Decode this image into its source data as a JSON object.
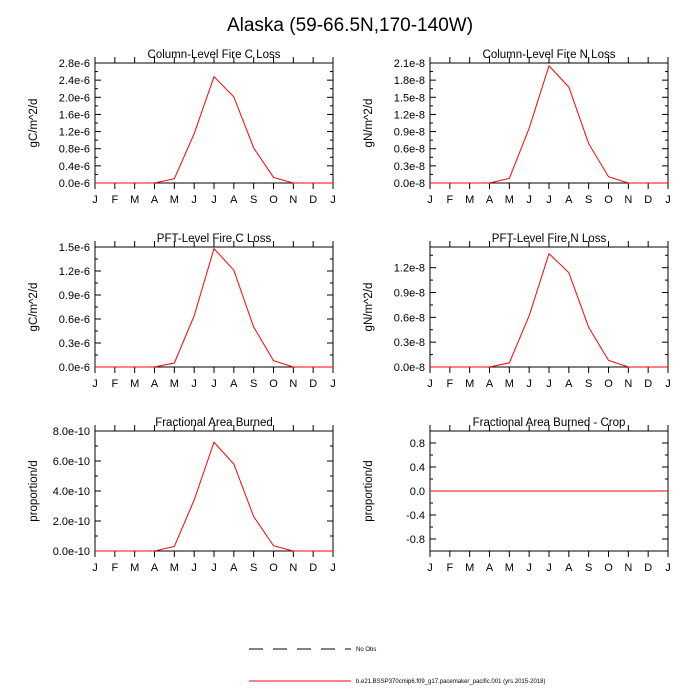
{
  "figure": {
    "title": "Alaska (59-66.5N,170-140W)"
  },
  "legend": {
    "items": [
      {
        "label": "No Obs",
        "style": "dashed",
        "color": "#000000"
      },
      {
        "label": "b.e21.BSSP370cmip6.f09_g17.pacemaker_pacific.001 (yrs 2015-2018)",
        "style": "solid",
        "color": "#ff0000"
      }
    ]
  },
  "chart_data": [
    {
      "type": "line",
      "title": "Column-Level Fire C Loss",
      "ylabel": "gC/m^2/d",
      "categories": [
        "J",
        "F",
        "M",
        "A",
        "M",
        "J",
        "J",
        "A",
        "S",
        "O",
        "N",
        "D",
        "J"
      ],
      "ylim": [
        0,
        2.8e-06
      ],
      "yticks": [
        0,
        4e-07,
        8e-07,
        1.2e-06,
        1.6e-06,
        2e-06,
        2.4e-06,
        2.8e-06
      ],
      "ytick_labels": [
        "0.0e-6",
        "0.4e-6",
        "0.8e-6",
        "1.2e-6",
        "1.6e-6",
        "2.0e-6",
        "2.4e-6",
        "2.8e-6"
      ],
      "series": [
        {
          "name": "b.e21.BSSP370cmip6.f09_g17.pacemaker_pacific.001 (yrs 2015-2018)",
          "color": "#ff0000",
          "values": [
            0,
            0,
            0,
            0,
            1e-07,
            1.15e-06,
            2.48e-06,
            2.01e-06,
            8.2e-07,
            1.3e-07,
            0,
            0,
            0
          ]
        }
      ]
    },
    {
      "type": "line",
      "title": "Column-Level Fire N Loss",
      "ylabel": "gN/m^2/d",
      "categories": [
        "J",
        "F",
        "M",
        "A",
        "M",
        "J",
        "J",
        "A",
        "S",
        "O",
        "N",
        "D",
        "J"
      ],
      "ylim": [
        0,
        2.1e-08
      ],
      "yticks": [
        0,
        3e-09,
        6e-09,
        9e-09,
        1.2e-08,
        1.5e-08,
        1.8e-08,
        2.1e-08
      ],
      "ytick_labels": [
        "0.0e-8",
        "0.3e-8",
        "0.6e-8",
        "0.9e-8",
        "1.2e-8",
        "1.5e-8",
        "1.8e-8",
        "2.1e-8"
      ],
      "series": [
        {
          "name": "b.e21.BSSP370cmip6.f09_g17.pacemaker_pacific.001 (yrs 2015-2018)",
          "color": "#ff0000",
          "values": [
            0,
            0,
            0,
            0,
            8e-10,
            9.6e-09,
            2.05e-08,
            1.68e-08,
            6.9e-09,
            1.1e-09,
            0,
            0,
            0
          ]
        }
      ]
    },
    {
      "type": "line",
      "title": "PFT-Level Fire C Loss",
      "ylabel": "gC/m^2/d",
      "categories": [
        "J",
        "F",
        "M",
        "A",
        "M",
        "J",
        "J",
        "A",
        "S",
        "O",
        "N",
        "D",
        "J"
      ],
      "ylim": [
        0,
        1.5e-06
      ],
      "yticks": [
        0,
        3e-07,
        6e-07,
        9e-07,
        1.2e-06,
        1.5e-06
      ],
      "ytick_labels": [
        "0.0e-6",
        "0.3e-6",
        "0.6e-6",
        "0.9e-6",
        "1.2e-6",
        "1.5e-6"
      ],
      "series": [
        {
          "name": "b.e21.BSSP370cmip6.f09_g17.pacemaker_pacific.001 (yrs 2015-2018)",
          "color": "#ff0000",
          "values": [
            0,
            0,
            0,
            0,
            5e-08,
            6.4e-07,
            1.48e-06,
            1.21e-06,
            5e-07,
            8e-08,
            0,
            0,
            0
          ]
        }
      ]
    },
    {
      "type": "line",
      "title": "PFT-Level Fire N Loss",
      "ylabel": "gN/m^2/d",
      "categories": [
        "J",
        "F",
        "M",
        "A",
        "M",
        "J",
        "J",
        "A",
        "S",
        "O",
        "N",
        "D",
        "J"
      ],
      "ylim": [
        0,
        1.45e-08
      ],
      "yticks": [
        0,
        3e-09,
        6e-09,
        9e-09,
        1.2e-08
      ],
      "ytick_labels": [
        "0.0e-8",
        "0.3e-8",
        "0.6e-8",
        "0.9e-8",
        "1.2e-8"
      ],
      "series": [
        {
          "name": "b.e21.BSSP370cmip6.f09_g17.pacemaker_pacific.001 (yrs 2015-2018)",
          "color": "#ff0000",
          "values": [
            0,
            0,
            0,
            0,
            5e-10,
            6.2e-09,
            1.37e-08,
            1.14e-08,
            4.8e-09,
            8e-10,
            0,
            0,
            0
          ]
        }
      ]
    },
    {
      "type": "line",
      "title": "Fractional Area Burned",
      "ylabel": "proportion/d",
      "categories": [
        "J",
        "F",
        "M",
        "A",
        "M",
        "J",
        "J",
        "A",
        "S",
        "O",
        "N",
        "D",
        "J"
      ],
      "ylim": [
        0,
        8e-10
      ],
      "yticks": [
        0,
        2e-10,
        4e-10,
        6e-10,
        8e-10
      ],
      "ytick_labels": [
        "0.0e-10",
        "2.0e-10",
        "4.0e-10",
        "6.0e-10",
        "8.0e-10"
      ],
      "series": [
        {
          "name": "b.e21.BSSP370cmip6.f09_g17.pacemaker_pacific.001 (yrs 2015-2018)",
          "color": "#ff0000",
          "values": [
            0,
            0,
            0,
            0,
            3e-11,
            3.4e-10,
            7.25e-10,
            5.8e-10,
            2.3e-10,
            3.5e-11,
            0,
            0,
            0
          ]
        }
      ]
    },
    {
      "type": "line",
      "title": "Fractional Area Burned - Crop",
      "ylabel": "proportion/d",
      "categories": [
        "J",
        "F",
        "M",
        "A",
        "M",
        "J",
        "J",
        "A",
        "S",
        "O",
        "N",
        "D",
        "J"
      ],
      "ylim": [
        -1,
        1
      ],
      "yticks": [
        -0.8,
        -0.4,
        0,
        0.4,
        0.8
      ],
      "ytick_labels": [
        "-0.8",
        "-0.4",
        "0.0",
        "0.4",
        "0.8"
      ],
      "series": [
        {
          "name": "b.e21.BSSP370cmip6.f09_g17.pacemaker_pacific.001 (yrs 2015-2018)",
          "color": "#ff0000",
          "values": [
            0,
            0,
            0,
            0,
            0,
            0,
            0,
            0,
            0,
            0,
            0,
            0,
            0
          ]
        }
      ]
    }
  ]
}
